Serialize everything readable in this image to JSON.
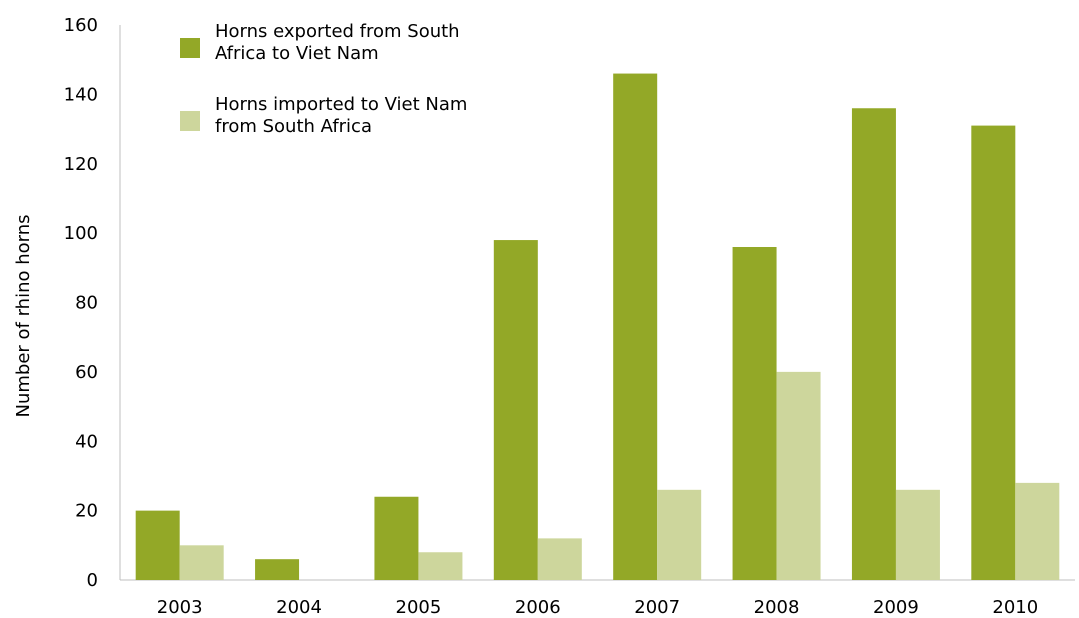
{
  "chart_data": {
    "type": "bar",
    "title": "",
    "xlabel": "",
    "ylabel": "Number of rhino horns",
    "categories": [
      "2003",
      "2004",
      "2005",
      "2006",
      "2007",
      "2008",
      "2009",
      "2010"
    ],
    "ylim": [
      0,
      160
    ],
    "yticks": [
      "0",
      "20",
      "40",
      "60",
      "80",
      "100",
      "120",
      "140",
      "160"
    ],
    "grid": false,
    "legend_position": "top-left",
    "series": [
      {
        "name": "Horns exported from South Africa to Viet Nam",
        "legend_lines": [
          "Horns exported from South",
          "Africa to Viet Nam"
        ],
        "color": "#93a827",
        "values": [
          20,
          6,
          24,
          98,
          146,
          96,
          136,
          131
        ]
      },
      {
        "name": "Horns imported to Viet Nam from South Africa",
        "legend_lines": [
          "Horns imported to Viet Nam",
          "from South Africa"
        ],
        "color": "#cdd69c",
        "values": [
          10,
          0,
          8,
          12,
          26,
          60,
          26,
          28
        ]
      }
    ]
  }
}
